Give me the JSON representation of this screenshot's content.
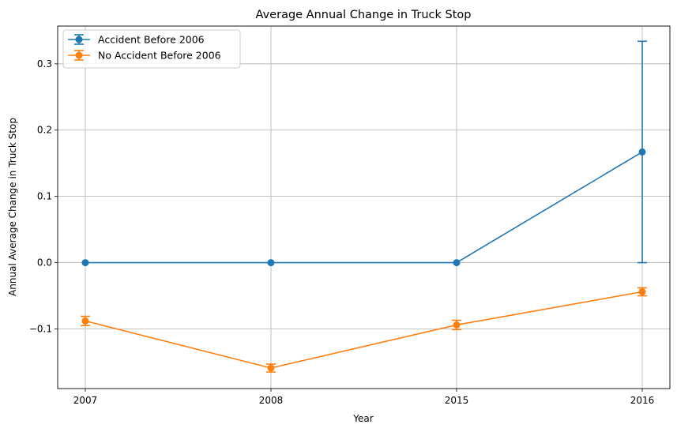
{
  "chart_data": {
    "type": "line",
    "title": "Average Annual Change in Truck Stop",
    "xlabel": "Year",
    "ylabel": "Annual Average Change in Truck Stop",
    "categories": [
      "2007",
      "2008",
      "2015",
      "2016"
    ],
    "yticks": [
      -0.1,
      0.0,
      0.1,
      0.2,
      0.3
    ],
    "ytick_labels": [
      "−0.1",
      "0.0",
      "0.1",
      "0.2",
      "0.3"
    ],
    "ylim": [
      -0.19,
      0.357
    ],
    "grid": true,
    "legend_position": "upper-left",
    "series": [
      {
        "name": "Accident Before 2006",
        "color": "#1f77b4",
        "values": [
          0.0,
          0.0,
          0.0,
          0.167
        ],
        "errors": [
          0.0,
          0.0,
          0.0,
          0.167
        ]
      },
      {
        "name": "No Accident Before 2006",
        "color": "#ff7f0e",
        "values": [
          -0.088,
          -0.159,
          -0.094,
          -0.044
        ],
        "errors": [
          0.007,
          0.006,
          0.007,
          0.006
        ]
      }
    ]
  }
}
